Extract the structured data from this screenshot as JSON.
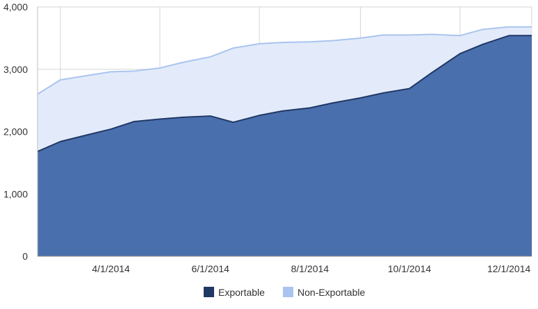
{
  "chart_data": {
    "type": "area",
    "stacked": true,
    "x": [
      "2/15/2014",
      "3/1/2014",
      "4/1/2014",
      "4/15/2014",
      "5/1/2014",
      "5/15/2014",
      "6/1/2014",
      "6/15/2014",
      "7/1/2014",
      "7/15/2014",
      "8/1/2014",
      "8/15/2014",
      "9/1/2014",
      "9/15/2014",
      "10/1/2014",
      "10/15/2014",
      "11/1/2014",
      "11/15/2014",
      "12/1/2014",
      "12/15/2014"
    ],
    "series": [
      {
        "name": "Exportable",
        "color": "#4a6fad",
        "line_color": "#203864",
        "values": [
          1680,
          1840,
          2040,
          2160,
          2200,
          2230,
          2250,
          2150,
          2260,
          2330,
          2380,
          2460,
          2540,
          2620,
          2690,
          2950,
          3250,
          3400,
          3540,
          3540
        ]
      },
      {
        "name": "Non-Exportable",
        "color": "#e3ebfb",
        "line_color": "#a9c4ee",
        "values": [
          920,
          990,
          920,
          810,
          820,
          880,
          950,
          1190,
          1150,
          1100,
          1060,
          1000,
          960,
          930,
          860,
          610,
          290,
          240,
          140,
          140
        ]
      }
    ],
    "x_tick_labels": [
      "4/1/2014",
      "6/1/2014",
      "8/1/2014",
      "10/1/2014",
      "12/1/2014"
    ],
    "y_tick_labels": [
      "0",
      "1,000",
      "2,000",
      "3,000",
      "4,000"
    ],
    "ylim": [
      0,
      4000
    ],
    "grid": true,
    "legend_position": "bottom",
    "title": "",
    "xlabel": "",
    "ylabel": ""
  }
}
